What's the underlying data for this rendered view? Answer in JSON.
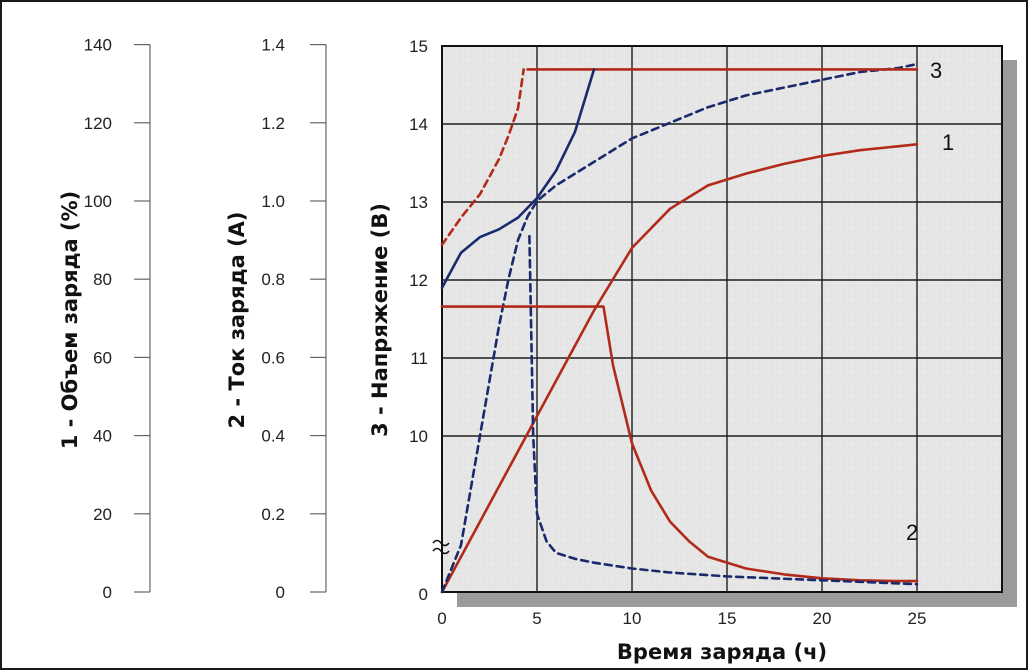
{
  "chart_data": {
    "type": "line",
    "xlabel": "Время заряда (ч)",
    "xticks": [
      "0",
      "5",
      "10",
      "15",
      "20",
      "25"
    ],
    "xlim": [
      0,
      25
    ],
    "grid": true,
    "y_axes": [
      {
        "label": "1 - Объем заряда (%)",
        "ticks": [
          "0",
          "20",
          "40",
          "60",
          "80",
          "100",
          "120",
          "140"
        ],
        "ylim": [
          0,
          140
        ]
      },
      {
        "label": "2 - Ток заряда (А)",
        "ticks": [
          "0",
          "0.2",
          "0.4",
          "0.6",
          "0.8",
          "1.0",
          "1.2",
          "1.4"
        ],
        "ylim": [
          0,
          1.4
        ]
      },
      {
        "label": "3 - Напряжение (В)",
        "ticks": [
          "0",
          "10",
          "11",
          "12",
          "13",
          "14",
          "15"
        ],
        "ylim": [
          0,
          15
        ],
        "axis_break": true
      }
    ],
    "curve_labels": [
      "1",
      "2",
      "3"
    ],
    "series": [
      {
        "id": "1-solid",
        "axis": "charge_percent",
        "style": "solid",
        "color": "#b22a1a",
        "x": [
          0,
          2,
          4,
          6,
          8,
          10,
          12,
          14,
          16,
          18,
          20,
          22,
          24,
          25
        ],
        "y": [
          0,
          18,
          36,
          54,
          72,
          88,
          98,
          104,
          107,
          109.5,
          111.5,
          113,
          114,
          114.5
        ]
      },
      {
        "id": "1-dashed",
        "axis": "charge_percent",
        "style": "dashed",
        "color": "#1a2a6c",
        "x": [
          0,
          1,
          2,
          3,
          3.5,
          4,
          4.5,
          5,
          6,
          8,
          10,
          12,
          14,
          16,
          18,
          20,
          22,
          24,
          25
        ],
        "y": [
          0,
          12,
          40,
          68,
          80,
          90,
          96,
          100,
          104,
          110,
          116,
          120,
          124,
          127,
          129,
          131,
          133,
          134,
          135
        ]
      },
      {
        "id": "2-solid",
        "axis": "charge_current",
        "style": "solid",
        "color": "#b22a1a",
        "x": [
          0,
          8.5,
          9,
          10,
          11,
          12,
          13,
          14,
          16,
          18,
          20,
          22,
          24,
          25
        ],
        "y": [
          0.73,
          0.73,
          0.58,
          0.38,
          0.26,
          0.18,
          0.13,
          0.09,
          0.06,
          0.045,
          0.035,
          0.03,
          0.028,
          0.028
        ]
      },
      {
        "id": "2-dashed",
        "axis": "charge_current",
        "style": "dashed",
        "color": "#1a2a6c",
        "x": [
          4.6,
          4.8,
          5,
          5.5,
          6,
          7,
          8,
          10,
          12,
          15,
          20,
          25
        ],
        "y": [
          0.91,
          0.4,
          0.2,
          0.13,
          0.1,
          0.085,
          0.075,
          0.06,
          0.05,
          0.04,
          0.03,
          0.02
        ]
      },
      {
        "id": "3-solid",
        "axis": "voltage",
        "style": "solid",
        "color": "#b22a1a",
        "x": [
          4.5,
          25
        ],
        "y": [
          14.7,
          14.7
        ]
      },
      {
        "id": "3-dashed",
        "axis": "voltage",
        "style": "dashed",
        "color": "#b22a1a",
        "x": [
          0,
          1,
          2,
          3,
          3.5,
          4,
          4.3
        ],
        "y": [
          12.45,
          12.8,
          13.1,
          13.55,
          13.85,
          14.2,
          14.7
        ]
      },
      {
        "id": "3-blue-solid",
        "axis": "voltage",
        "style": "solid",
        "color": "#1a2a6c",
        "x": [
          0,
          1,
          2,
          3,
          4,
          5,
          6,
          7,
          7.5,
          8
        ],
        "y": [
          11.9,
          12.35,
          12.55,
          12.65,
          12.8,
          13.05,
          13.4,
          13.9,
          14.3,
          14.7
        ]
      }
    ]
  }
}
